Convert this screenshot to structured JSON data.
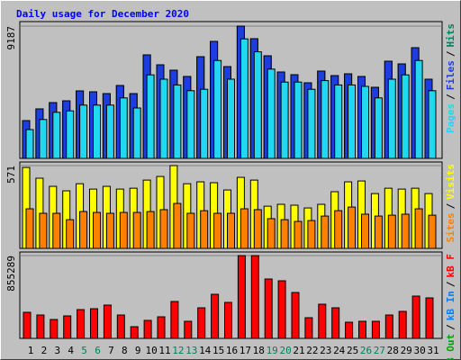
{
  "title": "Daily usage for December 2020",
  "chart_data": [
    {
      "type": "bar",
      "categories": [
        "1",
        "2",
        "3",
        "4",
        "5",
        "6",
        "7",
        "8",
        "9",
        "10",
        "11",
        "12",
        "13",
        "14",
        "15",
        "16",
        "17",
        "18",
        "19",
        "20",
        "21",
        "22",
        "23",
        "24",
        "25",
        "26",
        "27",
        "28",
        "29",
        "30",
        "31"
      ],
      "category_colors": [
        "#000000",
        "#000000",
        "#000000",
        "#000000",
        "#00805c",
        "#00805c",
        "#000000",
        "#000000",
        "#000000",
        "#000000",
        "#000000",
        "#00805c",
        "#00805c",
        "#000000",
        "#000000",
        "#000000",
        "#000000",
        "#000000",
        "#00805c",
        "#00805c",
        "#000000",
        "#000000",
        "#000000",
        "#000000",
        "#000000",
        "#00805c",
        "#00805c",
        "#000000",
        "#000000",
        "#000000",
        "#000000"
      ],
      "legend_separator": "/",
      "series": [
        {
          "name": "Hits",
          "color": "#00805c",
          "values": [
            2625,
            3438,
            3875,
            4000,
            4688,
            4625,
            4500,
            5063,
            4500,
            7188,
            6500,
            6125,
            5688,
            7063,
            8125,
            6375,
            9187,
            8313,
            7125,
            6000,
            5813,
            5250,
            6063,
            5750,
            5875,
            5688,
            4938,
            6750,
            6563,
            7688,
            5500
          ]
        },
        {
          "name": "Files",
          "color": "#1c3ee0",
          "values": [
            2625,
            3438,
            3875,
            4000,
            4688,
            4625,
            4500,
            5063,
            4500,
            7188,
            6500,
            6125,
            5688,
            7063,
            8125,
            6375,
            9187,
            8313,
            7125,
            6000,
            5813,
            5250,
            6063,
            5750,
            5875,
            5688,
            4938,
            6750,
            6563,
            7688,
            5500
          ]
        },
        {
          "name": "Pages",
          "color": "#22d8f0",
          "values": [
            2000,
            2700,
            3200,
            3300,
            3700,
            3700,
            3700,
            4200,
            3500,
            5800,
            5500,
            5100,
            4700,
            4800,
            6800,
            5500,
            8300,
            7400,
            6200,
            5300,
            5300,
            4800,
            5400,
            5100,
            5100,
            5000,
            4200,
            5500,
            5800,
            6800,
            4700
          ]
        }
      ],
      "ylim": [
        0,
        9187
      ],
      "yticks": [
        9187
      ]
    },
    {
      "type": "bar",
      "legend_separator": "/",
      "series": [
        {
          "name": "Visits",
          "color": "#ffff00",
          "values": [
            558,
            484,
            428,
            397,
            446,
            409,
            428,
            409,
            415,
            471,
            496,
            571,
            446,
            459,
            453,
            403,
            490,
            471,
            291,
            304,
            298,
            279,
            304,
            391,
            459,
            465,
            378,
            415,
            409,
            415,
            378
          ]
        },
        {
          "name": "Sites",
          "color": "#ff8000",
          "values": [
            273,
            242,
            242,
            198,
            254,
            248,
            242,
            248,
            248,
            254,
            267,
            310,
            242,
            260,
            242,
            242,
            273,
            267,
            205,
            198,
            186,
            192,
            223,
            260,
            285,
            236,
            223,
            229,
            236,
            273,
            229
          ]
        }
      ],
      "ylim": [
        0,
        571
      ],
      "yticks": [
        571
      ]
    },
    {
      "type": "bar",
      "legend_separator": "/",
      "series": [
        {
          "name": "kB F",
          "color": "#ff0000",
          "values": [
            269613,
            241722,
            195237,
            232425,
            297504,
            306801,
            343989,
            241722,
            120861,
            185940,
            223128,
            381177,
            176643,
            316098,
            455553,
            371880,
            855289,
            855289,
            613602,
            595008,
            474147,
            213831,
            353286,
            316098,
            167346,
            176643,
            176643,
            241722,
            278910,
            436959,
            418365
          ]
        }
      ],
      "legend_extra": [
        {
          "name": "kB In",
          "color": "#0080ff"
        },
        {
          "name": "kB Out",
          "color": "#00a000"
        }
      ],
      "ylim": [
        0,
        855289
      ],
      "yticks": [
        855289
      ]
    }
  ]
}
